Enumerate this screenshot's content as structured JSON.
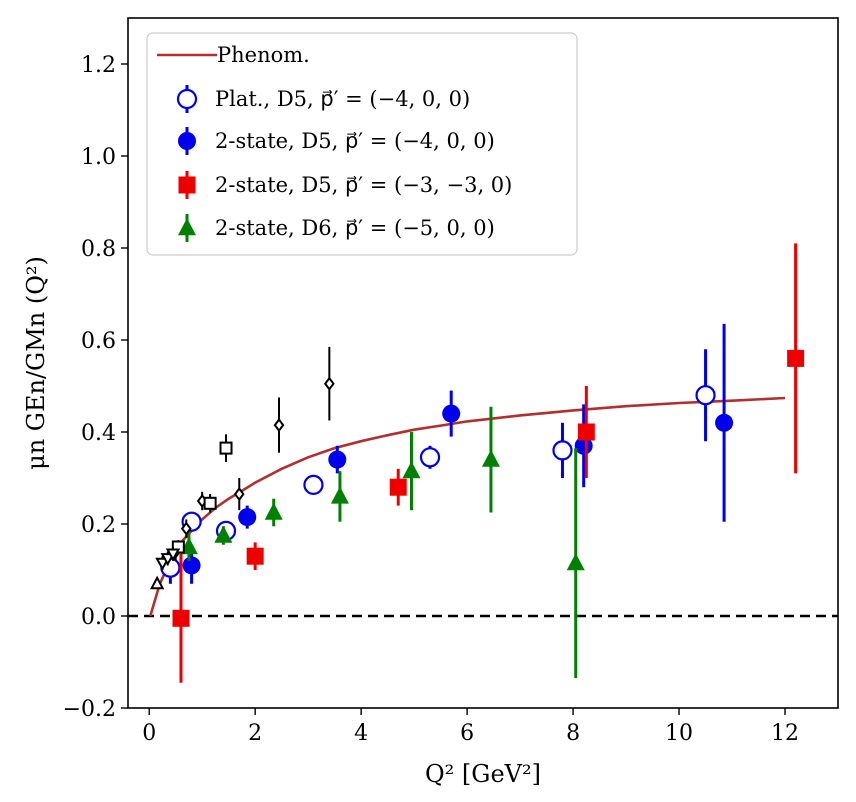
{
  "chart_data": {
    "type": "scatter",
    "xlabel": "Q² [GeV²]",
    "ylabel": "μn GEn/GMn (Q²)",
    "xlim": [
      -0.4,
      13.0
    ],
    "ylim": [
      -0.2,
      1.3
    ],
    "xticks": [
      0,
      2,
      4,
      6,
      8,
      10,
      12
    ],
    "yticks": [
      -0.2,
      0.0,
      0.2,
      0.4,
      0.6,
      0.8,
      1.0,
      1.2
    ],
    "xtick_labels": [
      "0",
      "2",
      "4",
      "6",
      "8",
      "10",
      "12"
    ],
    "ytick_labels": [
      "−0.2",
      "0.0",
      "0.2",
      "0.4",
      "0.6",
      "0.8",
      "1.0",
      "1.2"
    ],
    "grid": false,
    "legend_position": "top-left",
    "reference_line": {
      "y": 0.0,
      "style": "dashed",
      "color": "#000000"
    },
    "curve": {
      "name": "Phenom.",
      "color": "#b03030",
      "x": [
        0.02,
        0.2,
        0.4,
        0.6,
        0.8,
        1.0,
        1.25,
        1.5,
        1.75,
        2.0,
        2.5,
        3.0,
        3.5,
        4.0,
        4.5,
        5.0,
        5.5,
        6.0,
        7.0,
        8.0,
        9.0,
        10.0,
        11.0,
        12.0
      ],
      "y": [
        0.0,
        0.07,
        0.12,
        0.16,
        0.185,
        0.21,
        0.235,
        0.255,
        0.272,
        0.29,
        0.32,
        0.345,
        0.365,
        0.38,
        0.393,
        0.405,
        0.414,
        0.423,
        0.436,
        0.447,
        0.456,
        0.463,
        0.468,
        0.474
      ]
    },
    "series": [
      {
        "name": "Plat., D5, p⃗′ = (−4, 0, 0)",
        "marker": "open-circle",
        "color": "#0000ee",
        "x": [
          0.4,
          0.8,
          1.45,
          3.1,
          5.3,
          7.8,
          10.5
        ],
        "y": [
          0.105,
          0.205,
          0.185,
          0.285,
          0.345,
          0.36,
          0.48
        ],
        "yerr": [
          0.035,
          0.02,
          0.02,
          0.015,
          0.025,
          0.06,
          0.1
        ]
      },
      {
        "name": "2-state, D5, p⃗′ = (−4, 0, 0)",
        "marker": "filled-circle",
        "color": "#0000ee",
        "x": [
          0.8,
          1.85,
          3.55,
          5.7,
          8.2,
          10.85
        ],
        "y": [
          0.11,
          0.215,
          0.34,
          0.44,
          0.37,
          0.42
        ],
        "yerr": [
          0.04,
          0.025,
          0.03,
          0.05,
          0.09,
          0.215
        ]
      },
      {
        "name": "2-state, D5, p⃗′ = (−3, −3, 0)",
        "marker": "filled-square",
        "color": "#ee0000",
        "x": [
          0.6,
          2.0,
          4.7,
          8.25,
          12.2
        ],
        "y": [
          -0.005,
          0.13,
          0.28,
          0.4,
          0.56
        ],
        "yerr": [
          0.14,
          0.03,
          0.04,
          0.1,
          0.25
        ]
      },
      {
        "name": "2-state, D6, p⃗′ = (−5, 0, 0)",
        "marker": "filled-triangle",
        "color": "#008000",
        "x": [
          0.75,
          1.4,
          2.35,
          3.6,
          4.95,
          6.45,
          8.05
        ],
        "y": [
          0.15,
          0.175,
          0.225,
          0.26,
          0.315,
          0.34,
          0.115
        ],
        "yerr": [
          0.03,
          0.02,
          0.03,
          0.055,
          0.085,
          0.115,
          0.25
        ]
      },
      {
        "name": "",
        "marker": "open-diamond",
        "color": "#000000",
        "x": [
          0.5,
          0.7,
          1.0,
          1.7,
          2.45,
          3.4
        ],
        "y": [
          0.14,
          0.19,
          0.25,
          0.265,
          0.415,
          0.505
        ],
        "yerr": [
          0.02,
          0.02,
          0.02,
          0.035,
          0.06,
          0.08
        ]
      },
      {
        "name": "",
        "marker": "open-square",
        "color": "#000000",
        "x": [
          0.55,
          1.15,
          1.45
        ],
        "y": [
          0.15,
          0.245,
          0.365
        ],
        "yerr": [
          0.015,
          0.02,
          0.03
        ]
      },
      {
        "name": "",
        "marker": "open-triangle-down",
        "color": "#000000",
        "x": [
          0.25,
          0.35,
          0.45
        ],
        "y": [
          0.115,
          0.125,
          0.135
        ],
        "yerr": [
          0.015,
          0.015,
          0.015
        ]
      },
      {
        "name": "",
        "marker": "open-triangle-up",
        "color": "#000000",
        "x": [
          0.15
        ],
        "y": [
          0.07
        ],
        "yerr": [
          0.01
        ]
      }
    ]
  }
}
